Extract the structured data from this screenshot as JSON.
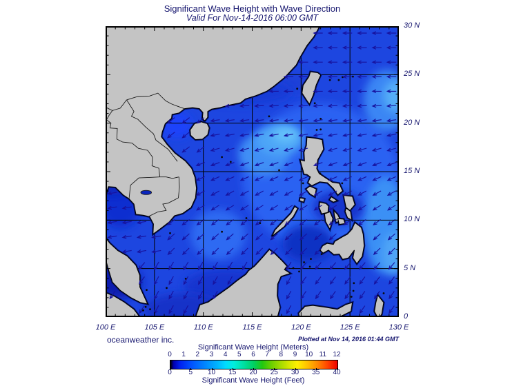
{
  "header": {
    "title": "Significant Wave Height with Wave Direction",
    "subtitle": "Valid For Nov-14-2016 06:00 GMT"
  },
  "map": {
    "lat_labels": [
      "30 N",
      "25 N",
      "20 N",
      "15 N",
      "10 N",
      "5 N",
      "0"
    ],
    "lon_labels": [
      "100 E",
      "105 E",
      "110 E",
      "115 E",
      "120 E",
      "125 E",
      "130 E"
    ],
    "lon_range_deg": [
      100,
      130
    ],
    "lat_range_deg": [
      0,
      30
    ],
    "grid_interval_deg": 5,
    "tick_interval_deg": 1
  },
  "footer": {
    "left": "oceanweather inc.",
    "right": "Plotted at Nov 14, 2016 01:44 GMT"
  },
  "legend": {
    "meters_title": "Significant Wave Height (Meters)",
    "feet_title": "Significant Wave Height (Feet)",
    "meters_ticks": [
      0,
      1,
      2,
      3,
      4,
      5,
      6,
      7,
      8,
      9,
      10,
      11,
      12
    ],
    "feet_ticks": [
      0,
      5,
      10,
      15,
      20,
      25,
      30,
      35,
      40
    ],
    "gradient_stops": [
      [
        0,
        "#000000"
      ],
      [
        2,
        "#0000b4"
      ],
      [
        6,
        "#0022f0"
      ],
      [
        13,
        "#0055ff"
      ],
      [
        21,
        "#0088ff"
      ],
      [
        28,
        "#00b4ff"
      ],
      [
        33,
        "#00dcff"
      ],
      [
        38,
        "#00eedd"
      ],
      [
        44,
        "#00e0a0"
      ],
      [
        50,
        "#00d060"
      ],
      [
        55,
        "#22c810"
      ],
      [
        60,
        "#66cf00"
      ],
      [
        66,
        "#a5dc00"
      ],
      [
        72,
        "#e0ea00"
      ],
      [
        76,
        "#fff000"
      ],
      [
        82,
        "#ffc000"
      ],
      [
        88,
        "#ff8800"
      ],
      [
        94,
        "#ff4400"
      ],
      [
        100,
        "#ee0000"
      ]
    ]
  },
  "colors": {
    "text": "#15156e",
    "sea_base": "#1d46e0",
    "land": "#c4c4c4",
    "coast": "#000000",
    "coast_fringe": "#03106a",
    "arrow": "#17129e",
    "grid": "#000000",
    "frame": "#000000",
    "sea_shades": {
      "center_light": "#2a62f2",
      "se_vietnam": "#2e6af2",
      "mid_luzon": "#3f8ff5",
      "patch_luzon": "#4da6f7",
      "patch_luzon_core": "#63c0fa",
      "edge_ne": "#3a86f4",
      "edge_ne_core": "#54aef8",
      "east_mindanao": "#3a90f5",
      "east_mindanao_core": "#4fa5f7",
      "tonkin": "#1e42fa",
      "taiwan_strait": "#1a3fd8",
      "china_coast": "#173ad6",
      "gulf_thailand": "#112fd0",
      "gulf_head": "#0b26bd",
      "malacca": "#0a1fae",
      "borneo_coast": "#1434cf",
      "sulu": "#1130c4",
      "visayas": "#1634cc",
      "java": "#1532c8"
    }
  }
}
